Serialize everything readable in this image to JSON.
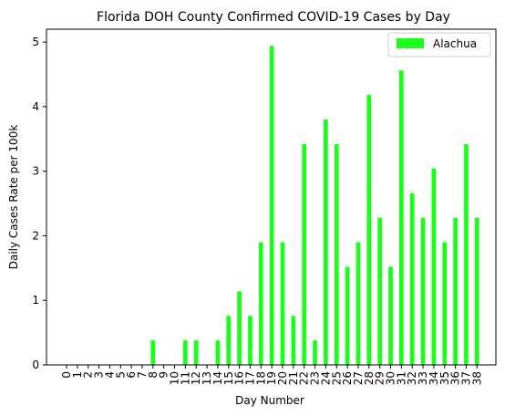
{
  "chart_data": {
    "type": "bar",
    "title": "Florida DOH County Confirmed COVID-19 Cases by Day",
    "xlabel": "Day Number",
    "ylabel": "Daily Cases Rate per 100k",
    "ylim": [
      0,
      5.2
    ],
    "yticks": [
      0,
      1,
      2,
      3,
      4,
      5
    ],
    "grid": false,
    "legend_position": "top-right",
    "categories": [
      "0",
      "1",
      "2",
      "3",
      "4",
      "5",
      "6",
      "7",
      "8",
      "9",
      "10",
      "11",
      "12",
      "13",
      "14",
      "15",
      "16",
      "17",
      "18",
      "19",
      "20",
      "21",
      "22",
      "23",
      "24",
      "25",
      "26",
      "27",
      "28",
      "29",
      "30",
      "31",
      "32",
      "33",
      "34",
      "35",
      "36",
      "37",
      "38"
    ],
    "series": [
      {
        "name": "Alachua",
        "color": "#1aff1a",
        "values": [
          0,
          0,
          0,
          0,
          0,
          0,
          0,
          0,
          0.38,
          0,
          0,
          0.38,
          0.38,
          0,
          0.38,
          0.76,
          1.14,
          0.76,
          1.9,
          4.94,
          1.9,
          0.76,
          3.42,
          0.38,
          3.8,
          3.42,
          1.52,
          1.9,
          4.18,
          2.28,
          1.52,
          4.56,
          2.66,
          2.28,
          3.04,
          1.9,
          2.28,
          3.42,
          2.28
        ]
      }
    ]
  }
}
